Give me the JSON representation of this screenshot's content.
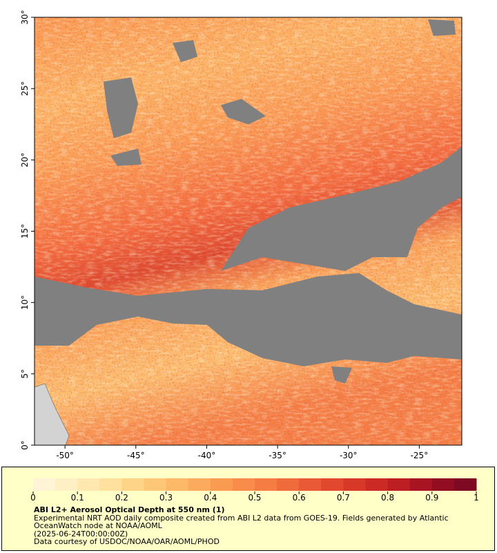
{
  "map": {
    "xlim": [
      -52.15,
      -22.0
    ],
    "ylim": [
      0,
      30
    ],
    "xticks": [
      {
        "value": -50,
        "label": "-50°"
      },
      {
        "value": -45,
        "label": "-45°"
      },
      {
        "value": -40,
        "label": "-40°"
      },
      {
        "value": -35,
        "label": "-35°"
      },
      {
        "value": -30,
        "label": "-30°"
      },
      {
        "value": -25,
        "label": "-25°"
      }
    ],
    "yticks": [
      {
        "value": 0,
        "label": "0°"
      },
      {
        "value": 5,
        "label": "5°"
      },
      {
        "value": 10,
        "label": "10°"
      },
      {
        "value": 15,
        "label": "15°"
      },
      {
        "value": 20,
        "label": "20°"
      },
      {
        "value": 25,
        "label": "25°"
      },
      {
        "value": 30,
        "label": "30°"
      }
    ]
  },
  "colorbar": {
    "range": [
      0,
      1
    ],
    "ticks": [
      0,
      0.1,
      0.2,
      0.3,
      0.4,
      0.5,
      0.6,
      0.7,
      0.8,
      0.9,
      1
    ],
    "colors": [
      "#fff5d6",
      "#ffefc4",
      "#ffe8b0",
      "#ffe09c",
      "#fed488",
      "#fdc777",
      "#fdb967",
      "#fcaa5c",
      "#fa9b52",
      "#f98c4a",
      "#f57c43",
      "#f06b3c",
      "#ea5935",
      "#e2482e",
      "#d83828",
      "#cc2a24",
      "#bc1e22",
      "#a81422",
      "#920c22",
      "#7d0a22"
    ]
  },
  "caption": {
    "title": "ABI L2+ Aerosol Optical Depth at 550 nm (1)",
    "description": "Experimental NRT AOD daily composite created from ABI L2 data from GOES-19. Fields generated by Atlantic OceanWatch node at NOAA/AOML",
    "timestamp": "(2025-06-24T00:00:00Z)",
    "credit": "Data courtesy of USDOC/NOAA/OAR/AOML/PHOD"
  }
}
